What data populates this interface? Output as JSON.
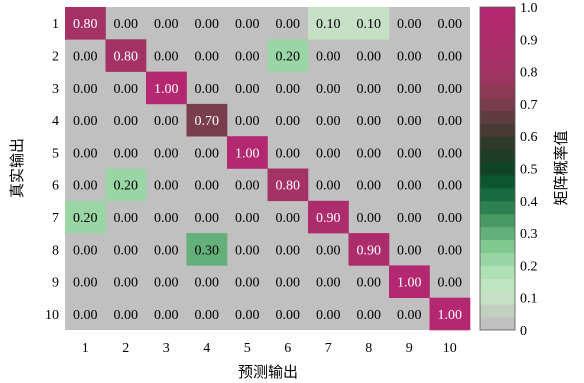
{
  "chart_data": {
    "type": "heatmap",
    "x_categories": [
      "1",
      "2",
      "3",
      "4",
      "5",
      "6",
      "7",
      "8",
      "9",
      "10"
    ],
    "y_categories": [
      "1",
      "2",
      "3",
      "4",
      "5",
      "6",
      "7",
      "8",
      "9",
      "10"
    ],
    "values": [
      [
        0.8,
        0.0,
        0.0,
        0.0,
        0.0,
        0.0,
        0.1,
        0.1,
        0.0,
        0.0
      ],
      [
        0.0,
        0.8,
        0.0,
        0.0,
        0.0,
        0.2,
        0.0,
        0.0,
        0.0,
        0.0
      ],
      [
        0.0,
        0.0,
        1.0,
        0.0,
        0.0,
        0.0,
        0.0,
        0.0,
        0.0,
        0.0
      ],
      [
        0.0,
        0.0,
        0.0,
        0.7,
        0.0,
        0.0,
        0.0,
        0.0,
        0.0,
        0.0
      ],
      [
        0.0,
        0.0,
        0.0,
        0.0,
        1.0,
        0.0,
        0.0,
        0.0,
        0.0,
        0.0
      ],
      [
        0.0,
        0.2,
        0.0,
        0.0,
        0.0,
        0.8,
        0.0,
        0.0,
        0.0,
        0.0
      ],
      [
        0.2,
        0.0,
        0.0,
        0.0,
        0.0,
        0.0,
        0.9,
        0.0,
        0.0,
        0.0
      ],
      [
        0.0,
        0.0,
        0.0,
        0.3,
        0.0,
        0.0,
        0.0,
        0.9,
        0.0,
        0.0
      ],
      [
        0.0,
        0.0,
        0.0,
        0.0,
        0.0,
        0.0,
        0.0,
        0.0,
        1.0,
        0.0
      ],
      [
        0.0,
        0.0,
        0.0,
        0.0,
        0.0,
        0.0,
        0.0,
        0.0,
        0.0,
        1.0
      ]
    ],
    "xlabel": "预测输出",
    "ylabel": "真实输出",
    "colorbar": {
      "label": "矩阵概率值",
      "range": [
        0,
        1.0
      ],
      "ticks": [
        "0",
        "0.1",
        "0.2",
        "0.3",
        "0.4",
        "0.5",
        "0.6",
        "0.7",
        "0.8",
        "0.9",
        "1.0"
      ],
      "colors": [
        "#c0c0c0",
        "#c2d0c2",
        "#c6e0c6",
        "#bfe6c1",
        "#ade0b3",
        "#99d5a5",
        "#80c890",
        "#64b07a",
        "#4a9963",
        "#2f8050",
        "#196a3f",
        "#0d5530",
        "#0f4427",
        "#1f3c26",
        "#2f3a2c",
        "#483a34",
        "#603c40",
        "#7a3d4d",
        "#8e3a57",
        "#9c3660",
        "#a43265",
        "#a92f68",
        "#ad2c6b",
        "#b0296d",
        "#b32870"
      ]
    }
  }
}
